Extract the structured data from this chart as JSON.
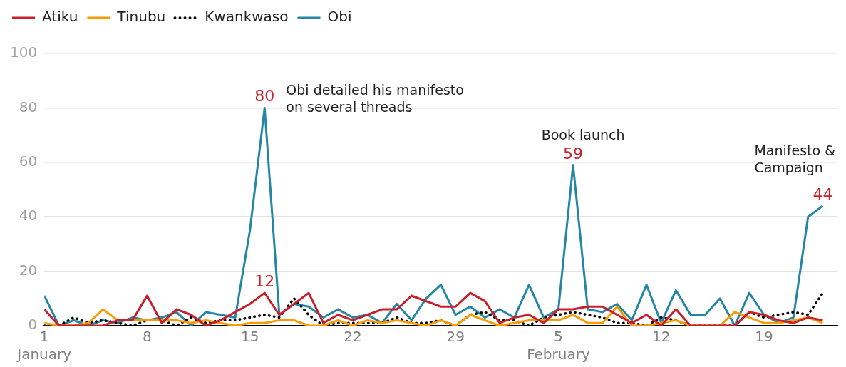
{
  "chart_data": {
    "type": "line",
    "x": [
      "--01-01",
      "--01-02",
      "--01-03",
      "--01-04",
      "--01-05",
      "--01-06",
      "--01-07",
      "--01-08",
      "--01-09",
      "--01-10",
      "--01-11",
      "--01-12",
      "--01-13",
      "--01-14",
      "--01-15",
      "--01-16",
      "--01-17",
      "--01-18",
      "--01-19",
      "--01-20",
      "--01-21",
      "--01-22",
      "--01-23",
      "--01-24",
      "--01-25",
      "--01-26",
      "--01-27",
      "--01-28",
      "--01-29",
      "--01-30",
      "--01-31",
      "--02-01",
      "--02-02",
      "--02-03",
      "--02-04",
      "--02-05",
      "--02-06",
      "--02-07",
      "--02-08",
      "--02-09",
      "--02-10",
      "--02-11",
      "--02-12",
      "--02-13",
      "--02-14",
      "--02-15",
      "--02-16",
      "--02-17",
      "--02-18",
      "--02-19",
      "--02-20",
      "--02-21",
      "--02-22",
      "--02-23"
    ],
    "xlim": [
      "--01-01",
      "--02-24"
    ],
    "xticks": [
      {
        "value": "--01-01",
        "label": "1\nJanuary"
      },
      {
        "value": "--01-08",
        "label": "8"
      },
      {
        "value": "--01-15",
        "label": "15"
      },
      {
        "value": "--01-22",
        "label": "22"
      },
      {
        "value": "--01-29",
        "label": "29"
      },
      {
        "value": "--02-05",
        "label": "5\nFebruary"
      },
      {
        "value": "--02-12",
        "label": "12"
      },
      {
        "value": "--02-19",
        "label": "19"
      }
    ],
    "ylim": [
      0,
      100
    ],
    "yticks": [
      0,
      20,
      40,
      60,
      80,
      100
    ],
    "grid": "y",
    "legend": "top left",
    "series": [
      {
        "name": "Atiku",
        "color": "#c7202a",
        "values": [
          6,
          0,
          0,
          0,
          0,
          2,
          2,
          11,
          1,
          6,
          4,
          0,
          2,
          5,
          8,
          12,
          4,
          8,
          12,
          1,
          4,
          2,
          4,
          6,
          6,
          11,
          9,
          7,
          7,
          12,
          9,
          1,
          3,
          4,
          1,
          6,
          6,
          7,
          7,
          4,
          1,
          4,
          0,
          6,
          0,
          0,
          0,
          0,
          5,
          4,
          2,
          1,
          3,
          2
        ],
        "value_labels": [
          null,
          null,
          null,
          null,
          null,
          null,
          null,
          null,
          null,
          null,
          null,
          null,
          null,
          null,
          null,
          "12",
          null,
          null,
          null,
          null,
          null,
          null,
          null,
          null,
          null,
          null,
          null,
          null,
          null,
          null,
          null,
          null,
          null,
          null,
          null,
          null,
          null,
          null,
          null,
          null,
          null,
          null,
          null,
          null,
          null,
          null,
          null,
          null,
          null,
          null,
          null,
          null,
          null,
          null
        ]
      },
      {
        "name": "Tinubu",
        "color": "#f89a00",
        "values": [
          1,
          0,
          0,
          1,
          6,
          2,
          2,
          2,
          2,
          2,
          1,
          2,
          1,
          0,
          1,
          1,
          2,
          2,
          0,
          0,
          2,
          0,
          2,
          1,
          2,
          1,
          0,
          2,
          0,
          4,
          2,
          0,
          1,
          2,
          2,
          2,
          4,
          1,
          1,
          7,
          0,
          0,
          1,
          2,
          0,
          0,
          0,
          5,
          3,
          1,
          1,
          2,
          3,
          1
        ]
      },
      {
        "name": "Kwankwaso",
        "color": "#000000",
        "line_style": "dotted",
        "values": [
          0,
          0,
          3,
          1,
          2,
          1,
          0,
          2,
          2,
          0,
          3,
          1,
          2,
          2,
          3,
          4,
          3,
          10,
          4,
          0,
          1,
          1,
          1,
          1,
          3,
          1,
          1,
          2,
          0,
          4,
          5,
          2,
          2,
          0,
          3,
          4,
          5,
          4,
          3,
          1,
          1,
          0,
          3,
          2,
          0,
          0,
          0,
          0,
          5,
          3,
          4,
          5,
          4,
          12
        ]
      },
      {
        "name": "Obi",
        "color": "#2486a6",
        "values": [
          11,
          0,
          2,
          0,
          2,
          1,
          3,
          2,
          3,
          5,
          0,
          5,
          4,
          3,
          35,
          80,
          4,
          8,
          7,
          3,
          6,
          3,
          4,
          1,
          8,
          2,
          10,
          15,
          4,
          7,
          3,
          6,
          3,
          15,
          3,
          6,
          59,
          6,
          5,
          8,
          2,
          15,
          1,
          13,
          4,
          4,
          10,
          0,
          12,
          4,
          1,
          3,
          40,
          44
        ],
        "value_labels": [
          null,
          null,
          null,
          null,
          null,
          null,
          null,
          null,
          null,
          null,
          null,
          null,
          null,
          null,
          null,
          "80",
          null,
          null,
          null,
          null,
          null,
          null,
          null,
          null,
          null,
          null,
          null,
          null,
          null,
          null,
          null,
          null,
          null,
          null,
          null,
          null,
          "59",
          null,
          null,
          null,
          null,
          null,
          null,
          null,
          null,
          null,
          null,
          null,
          null,
          null,
          null,
          null,
          null,
          "44"
        ]
      }
    ],
    "annotations": [
      {
        "text": "Obi detailed his manifesto\non several threads",
        "x": "--01-16",
        "y": 80
      },
      {
        "text": "Book launch",
        "x": "--02-06",
        "y": 59
      },
      {
        "text": "Manifesto &\nCampaign",
        "x": "--02-23",
        "y": 44
      }
    ]
  }
}
